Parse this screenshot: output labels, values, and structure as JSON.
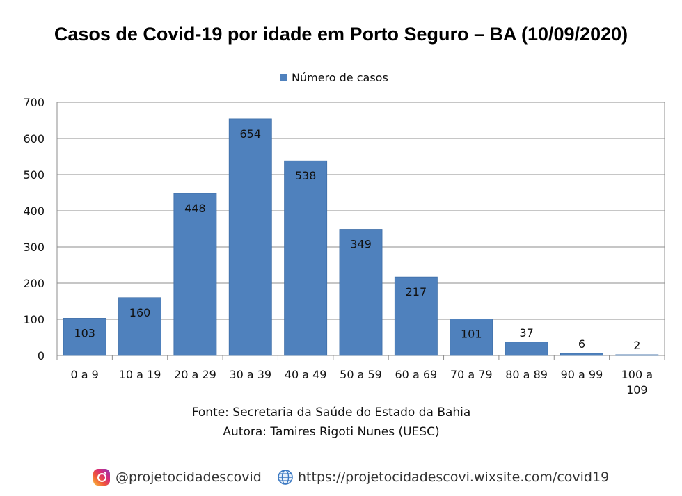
{
  "chart_data": {
    "type": "bar",
    "title": "Casos de Covid-19 por idade em Porto Seguro – BA (10/09/2020)",
    "categories": [
      "0 a 9",
      "10 a 19",
      "20 a 29",
      "30 a 39",
      "40 a 49",
      "50 a 59",
      "60 a 69",
      "70 a 79",
      "80 a 89",
      "90 a 99",
      "100 a 109"
    ],
    "series": [
      {
        "name": "Número de casos",
        "values": [
          103,
          160,
          448,
          654,
          538,
          349,
          217,
          101,
          37,
          6,
          2
        ],
        "color": "#4f81bd"
      }
    ],
    "ylim": [
      0,
      700
    ],
    "yticks": [
      0,
      100,
      200,
      300,
      400,
      500,
      600,
      700
    ],
    "grid": true,
    "legend_position": "top",
    "data_labels": true
  },
  "source": {
    "line1": "Fonte: Secretaria da Saúde do Estado da Bahia",
    "line2": "Autora: Tamires Rigoti Nunes (UESC)"
  },
  "footer": {
    "instagram": "@projetocidadescovid",
    "website": "https://projetocidadescovi.wixsite.com/covid19",
    "instagram_icon": "instagram-icon",
    "website_icon": "globe-icon"
  }
}
